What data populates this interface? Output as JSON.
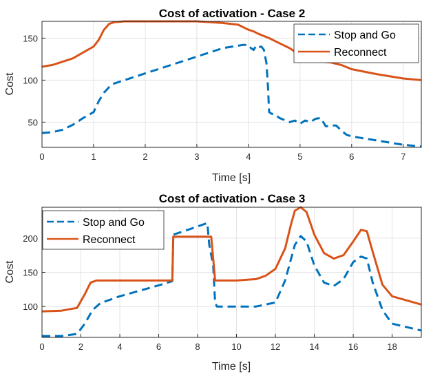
{
  "chart_data": [
    {
      "type": "line",
      "title": "Cost of activation - Case 2",
      "xlabel": "Time [s]",
      "ylabel": "Cost",
      "xlim": [
        0,
        7.35
      ],
      "ylim": [
        20,
        170
      ],
      "xticks": [
        0,
        1,
        2,
        3,
        4,
        5,
        6,
        7
      ],
      "yticks": [
        50,
        100,
        150
      ],
      "grid": true,
      "legend_location": "top-right",
      "series": [
        {
          "name": "Stop and Go",
          "color": "#0072BD",
          "style": "dashed",
          "x": [
            0,
            0.2,
            0.4,
            0.6,
            0.8,
            1.0,
            1.1,
            1.2,
            1.35,
            1.6,
            2.0,
            2.5,
            3.0,
            3.5,
            3.8,
            3.9,
            4.0,
            4.05,
            4.1,
            4.15,
            4.2,
            4.25,
            4.3,
            4.35,
            4.38,
            4.4,
            4.45,
            4.5,
            4.6,
            4.8,
            4.9,
            5.0,
            5.1,
            5.2,
            5.3,
            5.4,
            5.5,
            5.6,
            5.7,
            5.8,
            5.9,
            6.0,
            6.5,
            7.0,
            7.35
          ],
          "y": [
            37,
            38,
            41,
            47,
            55,
            62,
            75,
            85,
            95,
            100,
            108,
            118,
            128,
            138,
            141,
            142,
            142,
            138,
            136,
            141,
            139,
            140,
            136,
            120,
            90,
            62,
            60,
            60,
            55,
            50,
            52,
            48,
            52,
            50,
            54,
            55,
            45,
            46,
            46,
            40,
            35,
            33,
            28,
            23,
            21
          ]
        },
        {
          "name": "Reconnect",
          "color": "#D95319",
          "style": "solid",
          "x": [
            0,
            0.2,
            0.4,
            0.6,
            0.8,
            1.0,
            1.1,
            1.2,
            1.3,
            1.4,
            1.6,
            2.0,
            2.5,
            3.0,
            3.5,
            3.8,
            4.0,
            4.1,
            4.2,
            4.4,
            4.6,
            4.8,
            5.0,
            5.2,
            5.4,
            5.6,
            5.8,
            6.0,
            6.5,
            7.0,
            7.35
          ],
          "y": [
            116,
            118,
            122,
            126,
            133,
            140,
            148,
            160,
            167,
            169,
            170,
            170,
            170,
            170,
            168,
            166,
            160,
            158,
            155,
            150,
            144,
            138,
            130,
            125,
            122,
            121,
            118,
            113,
            107,
            102,
            100
          ]
        }
      ]
    },
    {
      "type": "line",
      "title": "Cost of activation - Case 3",
      "xlabel": "Time [s]",
      "ylabel": "Cost",
      "xlim": [
        0,
        19.5
      ],
      "ylim": [
        55,
        245
      ],
      "xticks": [
        0,
        2,
        4,
        6,
        8,
        10,
        12,
        14,
        16,
        18
      ],
      "yticks": [
        100,
        150,
        200
      ],
      "grid": true,
      "legend_location": "top-left",
      "series": [
        {
          "name": "Stop and Go",
          "color": "#0072BD",
          "style": "dashed",
          "x": [
            0,
            1.0,
            1.8,
            2.2,
            2.6,
            3.0,
            4.0,
            5.0,
            6.0,
            6.7,
            6.75,
            7.5,
            8.5,
            8.6,
            8.8,
            8.9,
            9.0,
            10.0,
            11.0,
            12.0,
            12.5,
            13.0,
            13.3,
            13.6,
            14.0,
            14.5,
            15.0,
            15.5,
            16.0,
            16.4,
            16.7,
            17.0,
            17.5,
            18.0,
            19.5
          ],
          "y": [
            57,
            57,
            60,
            75,
            95,
            105,
            115,
            123,
            131,
            137,
            205,
            212,
            222,
            190,
            160,
            105,
            100,
            100,
            100,
            106,
            138,
            190,
            203,
            195,
            160,
            135,
            130,
            140,
            165,
            173,
            170,
            135,
            95,
            75,
            65
          ]
        },
        {
          "name": "Reconnect",
          "color": "#D95319",
          "style": "solid",
          "x": [
            0,
            1.0,
            1.8,
            2.2,
            2.5,
            2.8,
            3.5,
            4.5,
            6.0,
            6.7,
            6.75,
            8.7,
            8.8,
            8.9,
            10.0,
            11.0,
            11.5,
            12.0,
            12.5,
            12.8,
            13.0,
            13.3,
            13.6,
            14.0,
            14.5,
            15.0,
            15.5,
            16.0,
            16.4,
            16.7,
            17.0,
            17.5,
            18.0,
            19.5
          ],
          "y": [
            93,
            94,
            98,
            118,
            135,
            138,
            138,
            138,
            138,
            138,
            202,
            202,
            170,
            138,
            138,
            140,
            145,
            155,
            185,
            220,
            240,
            245,
            238,
            205,
            178,
            170,
            175,
            195,
            212,
            210,
            180,
            132,
            115,
            103
          ]
        }
      ]
    }
  ]
}
